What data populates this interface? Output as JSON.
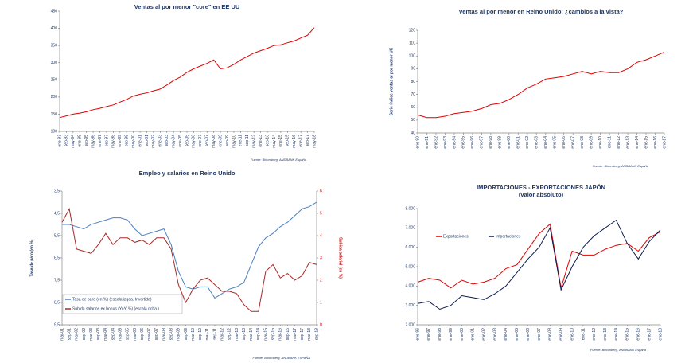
{
  "chart_data": [
    {
      "type": "line",
      "title": "Ventas al por menor \"core\" en EE UU",
      "source": "Fuente: Bloomberg, ANDBANK España",
      "categories": [
        "ene-93",
        "sep-93",
        "may-94",
        "ene-95",
        "sep-95",
        "may-96",
        "ene-97",
        "sep-97",
        "may-98",
        "ene-99",
        "sep-99",
        "may-00",
        "ene-01",
        "sep-01",
        "may-02",
        "ene-03",
        "sep-03",
        "may-04",
        "ene-05",
        "sep-05",
        "may-06",
        "ene-07",
        "sep-07",
        "may-08",
        "ene-09",
        "sep-09",
        "may-10",
        "ene-11",
        "sep-11",
        "may-12",
        "ene-13",
        "sep-13",
        "may-14",
        "ene-15",
        "sep-15",
        "may-16",
        "ene-17",
        "sep-17",
        "may-18"
      ],
      "series": [
        {
          "color": "#e00000",
          "values": [
            140,
            145,
            150,
            153,
            157,
            163,
            167,
            172,
            177,
            185,
            193,
            203,
            208,
            212,
            218,
            223,
            235,
            248,
            258,
            272,
            282,
            290,
            298,
            308,
            282,
            285,
            295,
            308,
            318,
            328,
            335,
            342,
            350,
            352,
            358,
            363,
            372,
            380,
            402
          ]
        }
      ],
      "ylim": [
        100,
        450
      ],
      "yticks": [
        100,
        150,
        200,
        250,
        300,
        350,
        400,
        450
      ]
    },
    {
      "type": "line",
      "title": "Ventas al por menor en Reino Unido: ¿cambios a la vista?",
      "source": "Fuente: Bloomberg, ANDBANK España",
      "ylabel": "Serie índice ventas al por menor UK",
      "categories": [
        "ene-90",
        "ene-91",
        "ene-92",
        "ene-93",
        "ene-94",
        "ene-95",
        "ene-96",
        "ene-97",
        "ene-98",
        "ene-99",
        "ene-00",
        "ene-01",
        "ene-02",
        "ene-03",
        "ene-04",
        "ene-05",
        "ene-06",
        "ene-07",
        "ene-08",
        "ene-09",
        "ene-10",
        "ene-11",
        "ene-12",
        "ene-13",
        "ene-14",
        "ene-15",
        "ene-16",
        "ene-17"
      ],
      "series": [
        {
          "color": "#e00000",
          "values": [
            54,
            52,
            52,
            53,
            55,
            56,
            57,
            59,
            62,
            63,
            66,
            70,
            75,
            78,
            82,
            83,
            84,
            86,
            88,
            86,
            88,
            87,
            87,
            90,
            95,
            97,
            100,
            103
          ]
        }
      ],
      "ylim": [
        40,
        120
      ],
      "yticks": [
        40,
        50,
        60,
        70,
        80,
        90,
        100,
        110,
        120
      ]
    },
    {
      "type": "line",
      "title": "Empleo y salarios en Reino Unido",
      "source": "Fuente: Bloomberg, ANDBANK ESPAÑA",
      "ylabel": "Tasa de paro (en %)",
      "y2label": "Subida salarial (en %)",
      "y_inverted": true,
      "categories": [
        "mar-01",
        "sep-01",
        "mar-02",
        "sep-02",
        "mar-03",
        "sep-03",
        "mar-04",
        "sep-04",
        "mar-05",
        "sep-05",
        "mar-06",
        "sep-06",
        "mar-07",
        "sep-07",
        "mar-08",
        "sep-08",
        "mar-09",
        "sep-09",
        "mar-10",
        "sep-10",
        "mar-11",
        "sep-11",
        "mar-12",
        "sep-12",
        "mar-13",
        "sep-13",
        "mar-14",
        "sep-14",
        "mar-15",
        "sep-15",
        "mar-16",
        "sep-16",
        "mar-17",
        "sep-17",
        "mar-18",
        "sep-18"
      ],
      "series": [
        {
          "name": "Tasa de paro (en %) (escala izqda. Invertida)",
          "color": "#4a7fc0",
          "values": [
            5.0,
            5.0,
            5.1,
            5.2,
            5.0,
            4.9,
            4.8,
            4.7,
            4.7,
            4.8,
            5.2,
            5.5,
            5.4,
            5.3,
            5.2,
            5.9,
            7.1,
            7.8,
            7.9,
            7.8,
            7.8,
            8.3,
            8.1,
            7.9,
            7.8,
            7.6,
            6.8,
            6.0,
            5.6,
            5.4,
            5.1,
            4.9,
            4.6,
            4.3,
            4.2,
            4.0
          ]
        },
        {
          "name": "Subida salarios ex bonus (YoY, %) (escala dcha.)",
          "color": "#a52a2a",
          "axis": "y2",
          "values": [
            4.6,
            5.2,
            3.4,
            3.3,
            3.2,
            3.6,
            4.1,
            3.6,
            3.9,
            3.9,
            3.7,
            3.8,
            3.6,
            3.9,
            3.9,
            3.4,
            1.8,
            1.0,
            1.6,
            2.0,
            2.1,
            1.8,
            1.5,
            1.5,
            1.4,
            0.9,
            0.6,
            0.6,
            2.4,
            2.7,
            2.1,
            2.3,
            2.0,
            2.2,
            2.8,
            2.7
          ]
        }
      ],
      "ylim": [
        3.5,
        9.5
      ],
      "yticks": [
        {
          "value": 3.5,
          "label": "3,5"
        },
        {
          "value": 4.5,
          "label": "4,5"
        },
        {
          "value": 5.5,
          "label": "5,5"
        },
        {
          "value": 6.5,
          "label": "6,5"
        },
        {
          "value": 7.5,
          "label": "7,5"
        },
        {
          "value": 8.5,
          "label": "8,5"
        },
        {
          "value": 9.5,
          "label": "9,5"
        }
      ],
      "y2lim": [
        0,
        6
      ],
      "y2ticks": [
        0,
        1,
        2,
        3,
        4,
        5,
        6
      ],
      "legend": "bottom-left"
    },
    {
      "type": "line",
      "title": "IMPORTACIONES - EXPORTACIONES JAPÓN",
      "subtitle": "(valor absoluto)",
      "source": "Fuente: Bloomberg, ANDBANK España",
      "categories": [
        "ene-96",
        "ene-97",
        "ene-98",
        "ene-99",
        "ene-00",
        "ene-01",
        "ene-02",
        "ene-03",
        "ene-04",
        "ene-05",
        "ene-06",
        "ene-07",
        "ene-08",
        "ene-09",
        "ene-10",
        "ene-11",
        "ene-12",
        "ene-13",
        "ene-14",
        "ene-15",
        "ene-16",
        "ene-17",
        "ene-18"
      ],
      "series": [
        {
          "name": "Exportaciones",
          "color": "#e00000",
          "values": [
            4200,
            4400,
            4300,
            3900,
            4300,
            4100,
            4200,
            4400,
            4900,
            5100,
            5900,
            6700,
            7200,
            3900,
            5800,
            5600,
            5600,
            5900,
            6100,
            6200,
            5800,
            6500,
            6800
          ]
        },
        {
          "name": "Importaciones",
          "color": "#0d1a4e",
          "values": [
            3100,
            3200,
            2800,
            3000,
            3500,
            3400,
            3300,
            3600,
            4000,
            4700,
            5400,
            6000,
            7000,
            3800,
            5000,
            6000,
            6600,
            7000,
            7400,
            6200,
            5400,
            6300,
            6900
          ]
        }
      ],
      "ylim": [
        2000,
        8000
      ],
      "yticks": [
        {
          "value": 2000,
          "label": "2.000"
        },
        {
          "value": 3000,
          "label": "3.000"
        },
        {
          "value": 4000,
          "label": "4.000"
        },
        {
          "value": 5000,
          "label": "5.000"
        },
        {
          "value": 6000,
          "label": "6.000"
        },
        {
          "value": 7000,
          "label": "7.000"
        },
        {
          "value": 8000,
          "label": "8.000"
        }
      ],
      "legend": "top-left"
    }
  ]
}
